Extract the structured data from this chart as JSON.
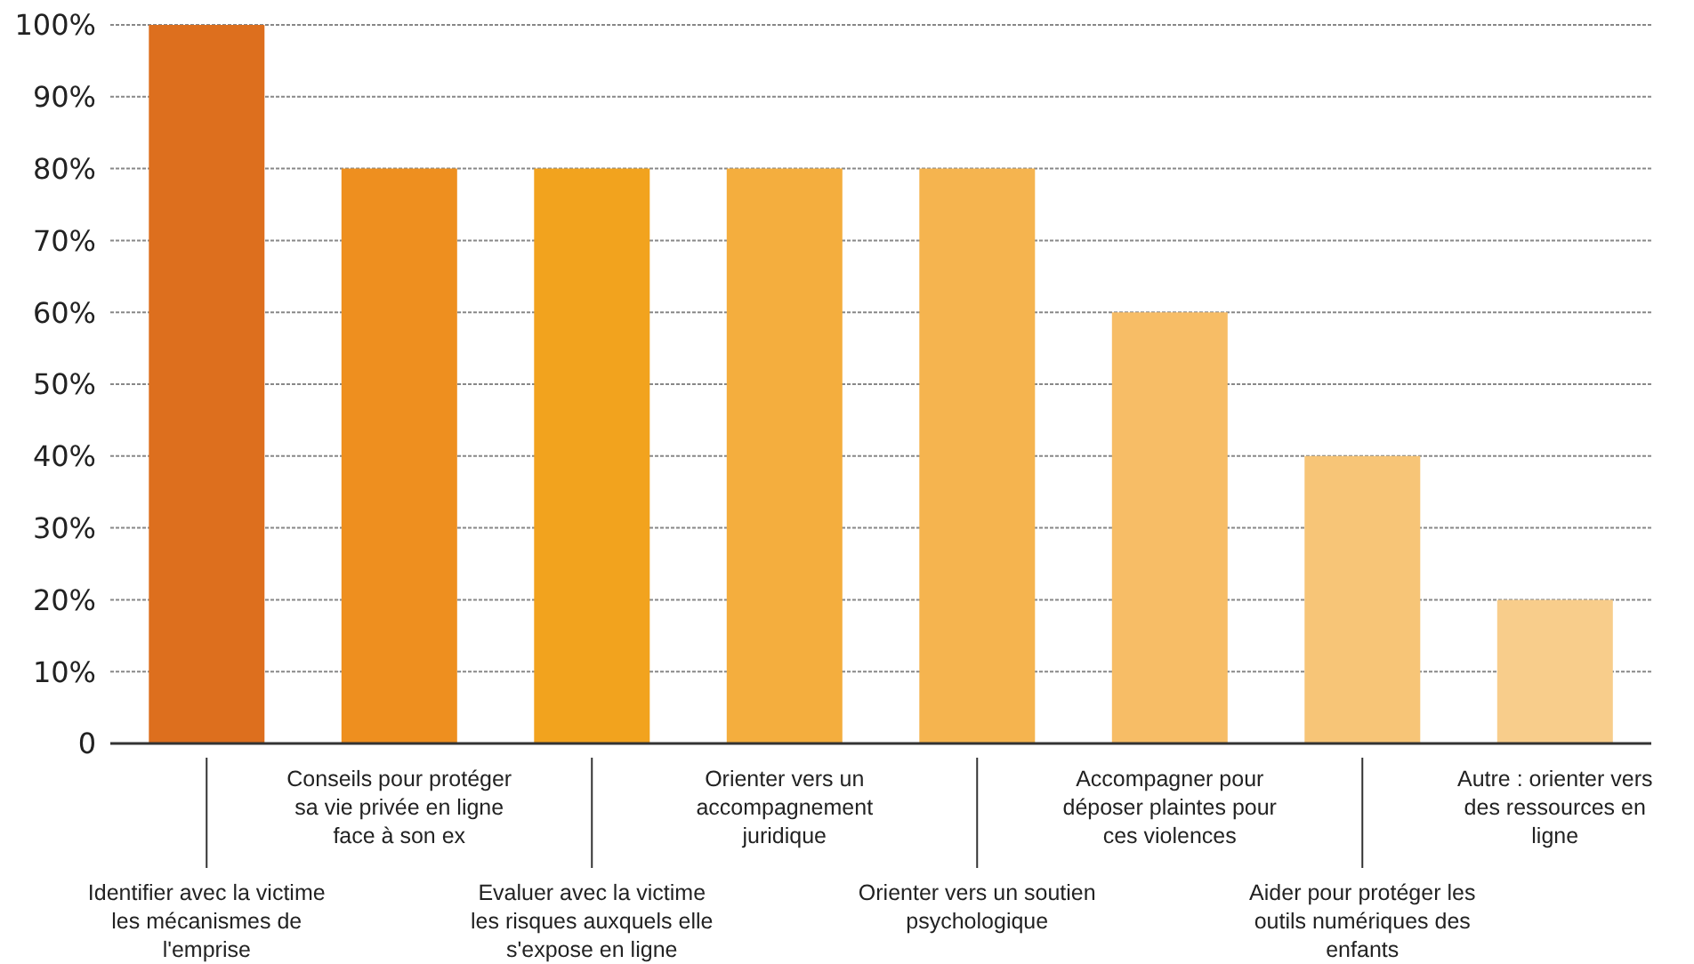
{
  "chart_data": {
    "type": "bar",
    "categories": [
      "Identifier avec la victime les mécanismes de l'emprise",
      "Conseils pour protéger sa vie privée en ligne face à son ex",
      "Evaluer avec la victime les risques auxquels elle s'expose en ligne",
      "Orienter vers un accompagnement juridique",
      "Orienter vers un soutien psychologique",
      "Accompagner pour déposer plaintes pour ces violences",
      "Aider pour protéger les outils numériques des enfants",
      "Autre : orienter vers des ressources en ligne"
    ],
    "values": [
      100,
      80,
      80,
      80,
      80,
      60,
      40,
      20
    ],
    "colors": [
      "#dd6f1e",
      "#ee8f1f",
      "#f2a31e",
      "#f4ae3e",
      "#f5b44f",
      "#f7bd66",
      "#f7c577",
      "#f8cd8b"
    ],
    "ylim": [
      0,
      100
    ],
    "yticks": [
      0,
      {
        "value": 10,
        "label": "10%"
      },
      {
        "value": 20,
        "label": "20%"
      },
      {
        "value": 30,
        "label": "30%"
      },
      {
        "value": 40,
        "label": "40%"
      },
      {
        "value": 50,
        "label": "50%"
      },
      {
        "value": 60,
        "label": "60%"
      },
      {
        "value": 70,
        "label": "70%"
      },
      {
        "value": 80,
        "label": "80%"
      },
      {
        "value": 90,
        "label": "90%"
      },
      {
        "value": 100,
        "label": "100%"
      }
    ],
    "grid": "y"
  }
}
